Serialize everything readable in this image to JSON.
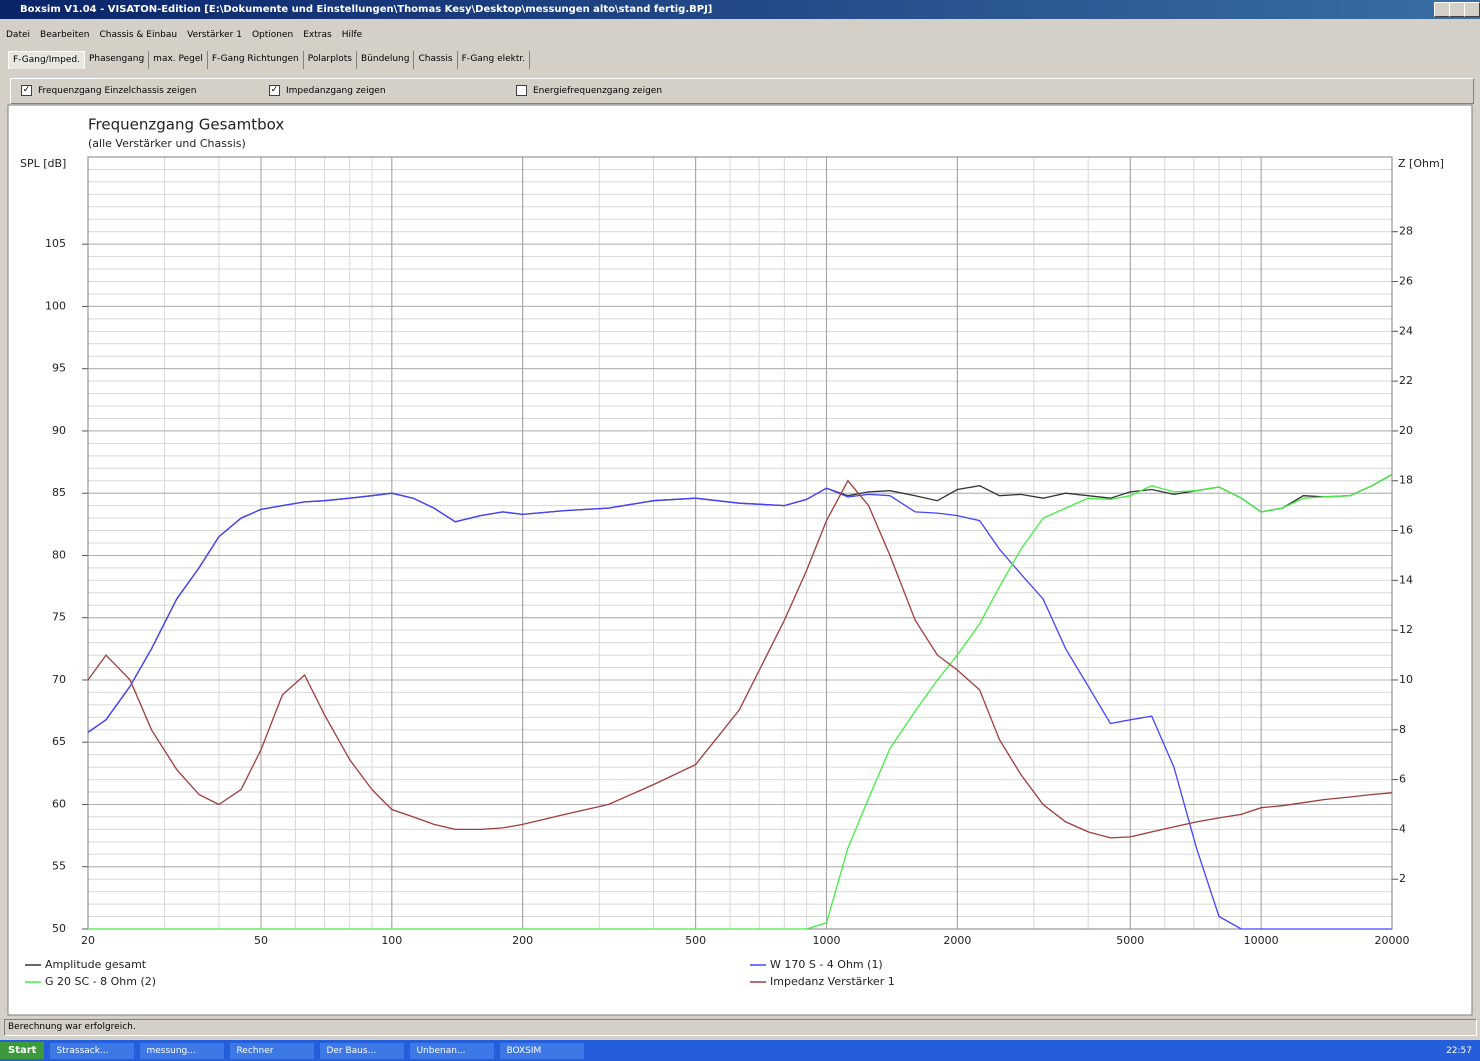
{
  "window": {
    "title": "Boxsim V1.04 - VISATON-Edition [E:\\Dokumente und Einstellungen\\Thomas Kesy\\Desktop\\messungen alto\\stand fertig.BPJ]"
  },
  "menu": [
    "Datei",
    "Bearbeiten",
    "Chassis & Einbau",
    "Verstärker 1",
    "Optionen",
    "Extras",
    "Hilfe"
  ],
  "tabs": [
    "F-Gang/Imped.",
    "Phasengang",
    "max. Pegel",
    "F-Gang Richtungen",
    "Polarplots",
    "Bündelung",
    "Chassis",
    "F-Gang elektr."
  ],
  "options": [
    {
      "label": "Frequenzgang Einzelchassis zeigen",
      "checked": true
    },
    {
      "label": "Impedanzgang zeigen",
      "checked": true
    },
    {
      "label": "Energiefrequenzgang zeigen",
      "checked": false
    }
  ],
  "chart_data": {
    "type": "line",
    "title": "Frequenzgang Gesamtbox",
    "subtitle": "(alle Verstärker und Chassis)",
    "ylabel": "SPL [dB]",
    "y2label": "Z [Ohm]",
    "log_x": true,
    "grid": true,
    "xlim": [
      20,
      20000
    ],
    "xticks": [
      20,
      50,
      100,
      200,
      500,
      1000,
      2000,
      5000,
      10000,
      20000
    ],
    "ylim": [
      50,
      112
    ],
    "yticks": [
      50,
      55,
      60,
      65,
      70,
      75,
      80,
      85,
      90,
      95,
      100,
      105
    ],
    "y2lim": [
      0,
      31
    ],
    "y2ticks": [
      2,
      4,
      6,
      8,
      10,
      12,
      14,
      16,
      18,
      20,
      22,
      24,
      26,
      28
    ],
    "x": [
      20,
      22,
      25,
      28,
      32,
      36,
      40,
      45,
      50,
      56,
      63,
      70,
      80,
      90,
      100,
      112,
      125,
      140,
      160,
      180,
      200,
      250,
      315,
      400,
      500,
      630,
      800,
      900,
      1000,
      1120,
      1250,
      1400,
      1600,
      1800,
      2000,
      2250,
      2500,
      2800,
      3150,
      3550,
      4000,
      4500,
      5000,
      5600,
      6300,
      7100,
      8000,
      9000,
      10000,
      11200,
      12500,
      14000,
      16000,
      18000,
      20000
    ],
    "series": [
      {
        "name": "Amplitude gesamt",
        "color": "#333333",
        "values": [
          65.8,
          66.8,
          69.5,
          72.5,
          76.5,
          79,
          81.5,
          83,
          83.7,
          84,
          84.3,
          84.4,
          84.6,
          84.8,
          85,
          84.6,
          83.8,
          82.7,
          83.2,
          83.5,
          83.3,
          83.6,
          83.8,
          84.4,
          84.6,
          84.2,
          84,
          84.5,
          85.4,
          84.8,
          85.1,
          85.2,
          84.8,
          84.4,
          85.3,
          85.6,
          84.8,
          84.9,
          84.6,
          85,
          84.8,
          84.6,
          85.1,
          85.3,
          84.9,
          85.2,
          85.5,
          84.6,
          83.5,
          83.8,
          84.8,
          84.7,
          84.8,
          85.6,
          86.5
        ]
      },
      {
        "name": "W 170 S - 4 Ohm (1)",
        "color": "#4444ff",
        "values": [
          65.8,
          66.8,
          69.5,
          72.5,
          76.5,
          79,
          81.5,
          83,
          83.7,
          84,
          84.3,
          84.4,
          84.6,
          84.8,
          85,
          84.6,
          83.8,
          82.7,
          83.2,
          83.5,
          83.3,
          83.6,
          83.8,
          84.4,
          84.6,
          84.2,
          84,
          84.5,
          85.4,
          84.7,
          84.9,
          84.8,
          83.5,
          83.4,
          83.2,
          82.8,
          80.5,
          78.5,
          76.5,
          72.5,
          69.5,
          66.5,
          66.8,
          67.1,
          63,
          56.5,
          51,
          50,
          50,
          50,
          50,
          50,
          50,
          50,
          50
        ]
      },
      {
        "name": "G 20 SC - 8 Ohm (2)",
        "color": "#44ee44",
        "values": [
          50,
          50,
          50,
          50,
          50,
          50,
          50,
          50,
          50,
          50,
          50,
          50,
          50,
          50,
          50,
          50,
          50,
          50,
          50,
          50,
          50,
          50,
          50,
          50,
          50,
          50,
          50,
          50,
          50.5,
          56.5,
          60.5,
          64.5,
          67.5,
          70,
          72,
          74.5,
          77.5,
          80.5,
          83,
          83.8,
          84.6,
          84.5,
          84.8,
          85.6,
          85.1,
          85.2,
          85.5,
          84.6,
          83.5,
          83.8,
          84.6,
          84.7,
          84.8,
          85.6,
          86.5
        ]
      },
      {
        "name": "Impedanz Verstärker 1",
        "color": "#a03c3c",
        "axis": "y2",
        "values": [
          10,
          11,
          10,
          8,
          6.4,
          5.4,
          5,
          5.6,
          7.2,
          9.4,
          10.2,
          8.6,
          6.8,
          5.6,
          4.8,
          4.5,
          4.2,
          4,
          4,
          4.06,
          4.2,
          4.6,
          5,
          5.8,
          6.6,
          8.8,
          12.4,
          14.4,
          16.4,
          18,
          17,
          15,
          12.4,
          11,
          10.4,
          9.6,
          7.6,
          6.2,
          5,
          4.3,
          3.9,
          3.66,
          3.7,
          3.9,
          4.1,
          4.3,
          4.46,
          4.6,
          4.87,
          4.95,
          5.07,
          5.2,
          5.3,
          5.4,
          5.47
        ]
      }
    ]
  },
  "status": "Berechnung war erfolgreich.",
  "taskbar": {
    "start": "Start",
    "items": [
      "Strassack...",
      "messung...",
      "Rechner",
      "Der Baus...",
      "Unbenan...",
      "BOXSIM"
    ],
    "clock": "22:57"
  }
}
